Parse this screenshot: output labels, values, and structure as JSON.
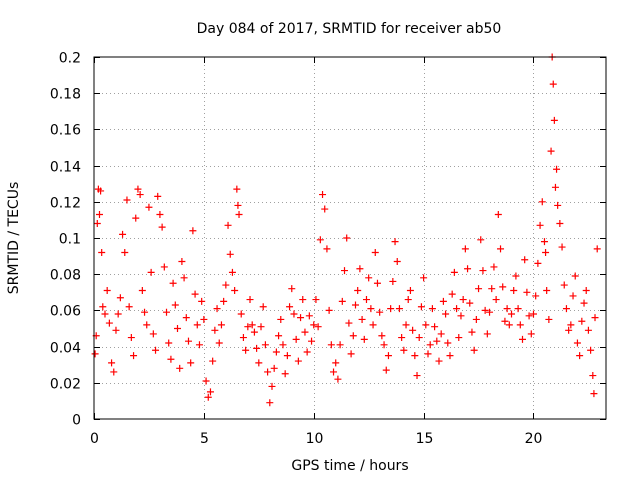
{
  "chart_data": {
    "type": "scatter",
    "title": "Day 084 of 2017, SRMTID for receiver ab50",
    "xlabel": "GPS time / hours",
    "ylabel": "SRMTID / TECUs",
    "xlim": [
      0,
      23.3
    ],
    "ylim": [
      0,
      0.2
    ],
    "xticks": [
      0,
      5,
      10,
      15,
      20
    ],
    "xtick_labels": [
      "0",
      "5",
      "10",
      "15",
      "20"
    ],
    "yticks": [
      0,
      0.02,
      0.04,
      0.06,
      0.08,
      0.1,
      0.12,
      0.14,
      0.16,
      0.18,
      0.2
    ],
    "ytick_labels": [
      "0",
      "0.02",
      "0.04",
      "0.06",
      "0.08",
      "0.1",
      "0.12",
      "0.14",
      "0.16",
      "0.18",
      "0.2"
    ],
    "grid": true,
    "marker": "plus",
    "series": [
      {
        "name": "ab50",
        "color": "#ff0000",
        "points": [
          [
            0.05,
            0.036
          ],
          [
            0.1,
            0.046
          ],
          [
            0.15,
            0.108
          ],
          [
            0.2,
            0.127
          ],
          [
            0.25,
            0.113
          ],
          [
            0.3,
            0.126
          ],
          [
            0.35,
            0.092
          ],
          [
            0.4,
            0.062
          ],
          [
            0.5,
            0.058
          ],
          [
            0.6,
            0.071
          ],
          [
            0.7,
            0.053
          ],
          [
            0.8,
            0.031
          ],
          [
            0.9,
            0.026
          ],
          [
            1.0,
            0.049
          ],
          [
            1.1,
            0.058
          ],
          [
            1.2,
            0.067
          ],
          [
            1.3,
            0.102
          ],
          [
            1.4,
            0.092
          ],
          [
            1.5,
            0.121
          ],
          [
            1.6,
            0.062
          ],
          [
            1.7,
            0.045
          ],
          [
            1.8,
            0.035
          ],
          [
            1.9,
            0.111
          ],
          [
            2.0,
            0.127
          ],
          [
            2.1,
            0.124
          ],
          [
            2.2,
            0.071
          ],
          [
            2.3,
            0.059
          ],
          [
            2.4,
            0.052
          ],
          [
            2.5,
            0.117
          ],
          [
            2.6,
            0.081
          ],
          [
            2.7,
            0.047
          ],
          [
            2.8,
            0.038
          ],
          [
            2.9,
            0.123
          ],
          [
            3.0,
            0.113
          ],
          [
            3.1,
            0.106
          ],
          [
            3.2,
            0.084
          ],
          [
            3.3,
            0.059
          ],
          [
            3.4,
            0.042
          ],
          [
            3.5,
            0.033
          ],
          [
            3.6,
            0.075
          ],
          [
            3.7,
            0.063
          ],
          [
            3.8,
            0.05
          ],
          [
            3.9,
            0.028
          ],
          [
            4.0,
            0.087
          ],
          [
            4.1,
            0.078
          ],
          [
            4.2,
            0.056
          ],
          [
            4.3,
            0.043
          ],
          [
            4.4,
            0.031
          ],
          [
            4.5,
            0.104
          ],
          [
            4.6,
            0.069
          ],
          [
            4.7,
            0.052
          ],
          [
            4.8,
            0.041
          ],
          [
            4.9,
            0.065
          ],
          [
            5.0,
            0.055
          ],
          [
            5.1,
            0.021
          ],
          [
            5.2,
            0.012
          ],
          [
            5.3,
            0.015
          ],
          [
            5.4,
            0.032
          ],
          [
            5.5,
            0.049
          ],
          [
            5.6,
            0.061
          ],
          [
            5.7,
            0.042
          ],
          [
            5.8,
            0.052
          ],
          [
            5.9,
            0.065
          ],
          [
            6.0,
            0.074
          ],
          [
            6.1,
            0.107
          ],
          [
            6.2,
            0.091
          ],
          [
            6.3,
            0.081
          ],
          [
            6.4,
            0.071
          ],
          [
            6.5,
            0.127
          ],
          [
            6.55,
            0.118
          ],
          [
            6.6,
            0.113
          ],
          [
            6.7,
            0.058
          ],
          [
            6.8,
            0.045
          ],
          [
            6.9,
            0.038
          ],
          [
            7.0,
            0.051
          ],
          [
            7.1,
            0.066
          ],
          [
            7.2,
            0.052
          ],
          [
            7.3,
            0.048
          ],
          [
            7.4,
            0.039
          ],
          [
            7.5,
            0.031
          ],
          [
            7.6,
            0.051
          ],
          [
            7.7,
            0.062
          ],
          [
            7.8,
            0.041
          ],
          [
            7.9,
            0.026
          ],
          [
            8.0,
            0.009
          ],
          [
            8.1,
            0.018
          ],
          [
            8.2,
            0.028
          ],
          [
            8.3,
            0.037
          ],
          [
            8.4,
            0.046
          ],
          [
            8.5,
            0.055
          ],
          [
            8.6,
            0.041
          ],
          [
            8.7,
            0.025
          ],
          [
            8.8,
            0.035
          ],
          [
            8.9,
            0.062
          ],
          [
            9.0,
            0.072
          ],
          [
            9.1,
            0.058
          ],
          [
            9.2,
            0.044
          ],
          [
            9.3,
            0.032
          ],
          [
            9.4,
            0.056
          ],
          [
            9.5,
            0.066
          ],
          [
            9.6,
            0.048
          ],
          [
            9.7,
            0.037
          ],
          [
            9.8,
            0.057
          ],
          [
            9.9,
            0.043
          ],
          [
            10.0,
            0.052
          ],
          [
            10.1,
            0.066
          ],
          [
            10.2,
            0.051
          ],
          [
            10.3,
            0.099
          ],
          [
            10.4,
            0.124
          ],
          [
            10.5,
            0.116
          ],
          [
            10.6,
            0.094
          ],
          [
            10.7,
            0.06
          ],
          [
            10.8,
            0.041
          ],
          [
            10.9,
            0.026
          ],
          [
            11.0,
            0.031
          ],
          [
            11.1,
            0.022
          ],
          [
            11.2,
            0.041
          ],
          [
            11.3,
            0.065
          ],
          [
            11.4,
            0.082
          ],
          [
            11.5,
            0.1
          ],
          [
            11.6,
            0.053
          ],
          [
            11.7,
            0.036
          ],
          [
            11.8,
            0.046
          ],
          [
            11.9,
            0.063
          ],
          [
            12.0,
            0.071
          ],
          [
            12.1,
            0.083
          ],
          [
            12.2,
            0.055
          ],
          [
            12.3,
            0.044
          ],
          [
            12.4,
            0.066
          ],
          [
            12.5,
            0.078
          ],
          [
            12.6,
            0.061
          ],
          [
            12.7,
            0.052
          ],
          [
            12.8,
            0.092
          ],
          [
            12.9,
            0.075
          ],
          [
            13.0,
            0.059
          ],
          [
            13.1,
            0.046
          ],
          [
            13.2,
            0.041
          ],
          [
            13.3,
            0.027
          ],
          [
            13.4,
            0.035
          ],
          [
            13.5,
            0.061
          ],
          [
            13.6,
            0.076
          ],
          [
            13.7,
            0.098
          ],
          [
            13.8,
            0.087
          ],
          [
            13.9,
            0.061
          ],
          [
            14.0,
            0.045
          ],
          [
            14.1,
            0.038
          ],
          [
            14.2,
            0.052
          ],
          [
            14.3,
            0.066
          ],
          [
            14.4,
            0.071
          ],
          [
            14.5,
            0.049
          ],
          [
            14.6,
            0.035
          ],
          [
            14.7,
            0.024
          ],
          [
            14.8,
            0.045
          ],
          [
            14.9,
            0.062
          ],
          [
            15.0,
            0.078
          ],
          [
            15.1,
            0.052
          ],
          [
            15.2,
            0.036
          ],
          [
            15.3,
            0.041
          ],
          [
            15.4,
            0.061
          ],
          [
            15.5,
            0.051
          ],
          [
            15.6,
            0.043
          ],
          [
            15.7,
            0.032
          ],
          [
            15.8,
            0.047
          ],
          [
            15.9,
            0.065
          ],
          [
            16.0,
            0.058
          ],
          [
            16.1,
            0.042
          ],
          [
            16.2,
            0.035
          ],
          [
            16.3,
            0.069
          ],
          [
            16.4,
            0.081
          ],
          [
            16.5,
            0.061
          ],
          [
            16.6,
            0.045
          ],
          [
            16.7,
            0.057
          ],
          [
            16.8,
            0.066
          ],
          [
            16.9,
            0.094
          ],
          [
            17.0,
            0.083
          ],
          [
            17.1,
            0.064
          ],
          [
            17.2,
            0.048
          ],
          [
            17.3,
            0.038
          ],
          [
            17.4,
            0.055
          ],
          [
            17.5,
            0.072
          ],
          [
            17.6,
            0.099
          ],
          [
            17.7,
            0.082
          ],
          [
            17.8,
            0.06
          ],
          [
            17.9,
            0.047
          ],
          [
            18.0,
            0.059
          ],
          [
            18.1,
            0.072
          ],
          [
            18.2,
            0.084
          ],
          [
            18.3,
            0.066
          ],
          [
            18.4,
            0.113
          ],
          [
            18.5,
            0.094
          ],
          [
            18.6,
            0.073
          ],
          [
            18.7,
            0.054
          ],
          [
            18.8,
            0.061
          ],
          [
            18.9,
            0.052
          ],
          [
            19.0,
            0.058
          ],
          [
            19.1,
            0.071
          ],
          [
            19.2,
            0.079
          ],
          [
            19.3,
            0.061
          ],
          [
            19.4,
            0.052
          ],
          [
            19.5,
            0.044
          ],
          [
            19.6,
            0.088
          ],
          [
            19.7,
            0.07
          ],
          [
            19.8,
            0.057
          ],
          [
            19.9,
            0.047
          ],
          [
            20.0,
            0.058
          ],
          [
            20.1,
            0.068
          ],
          [
            20.2,
            0.086
          ],
          [
            20.3,
            0.107
          ],
          [
            20.4,
            0.12
          ],
          [
            20.5,
            0.098
          ],
          [
            20.55,
            0.092
          ],
          [
            20.6,
            0.071
          ],
          [
            20.7,
            0.055
          ],
          [
            20.8,
            0.148
          ],
          [
            20.85,
            0.2
          ],
          [
            20.9,
            0.185
          ],
          [
            20.95,
            0.165
          ],
          [
            21.0,
            0.128
          ],
          [
            21.05,
            0.138
          ],
          [
            21.1,
            0.118
          ],
          [
            21.2,
            0.108
          ],
          [
            21.3,
            0.095
          ],
          [
            21.4,
            0.074
          ],
          [
            21.5,
            0.061
          ],
          [
            21.6,
            0.049
          ],
          [
            21.7,
            0.052
          ],
          [
            21.8,
            0.068
          ],
          [
            21.9,
            0.079
          ],
          [
            22.0,
            0.042
          ],
          [
            22.1,
            0.035
          ],
          [
            22.2,
            0.054
          ],
          [
            22.3,
            0.064
          ],
          [
            22.4,
            0.071
          ],
          [
            22.5,
            0.049
          ],
          [
            22.6,
            0.038
          ],
          [
            22.7,
            0.024
          ],
          [
            22.75,
            0.014
          ],
          [
            22.8,
            0.056
          ],
          [
            22.9,
            0.094
          ]
        ]
      }
    ]
  }
}
